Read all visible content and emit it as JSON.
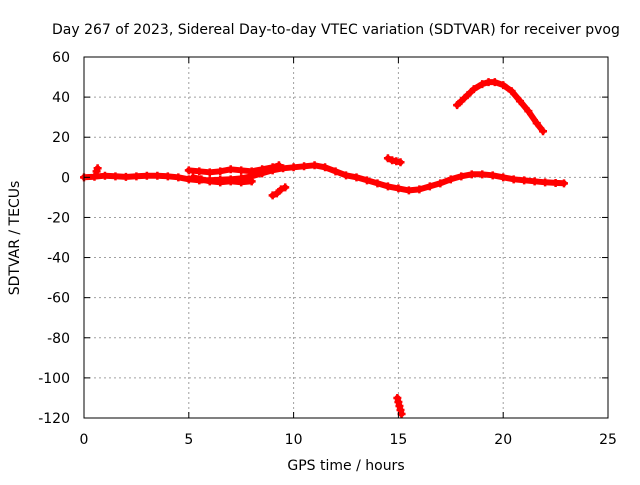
{
  "chart_data": {
    "type": "scatter",
    "title": "Day 267 of 2023, Sidereal Day-to-day VTEC variation (SDTVAR) for receiver pvog",
    "xlabel": "GPS time / hours",
    "ylabel": "SDTVAR / TECUs",
    "xlim": [
      0,
      25
    ],
    "ylim": [
      -120,
      60
    ],
    "xticks": [
      0,
      5,
      10,
      15,
      20,
      25
    ],
    "yticks": [
      -120,
      -100,
      -80,
      -60,
      -40,
      -20,
      0,
      20,
      40,
      60
    ],
    "grid": true,
    "legend": "none",
    "series_color": "#ff0000",
    "series": [
      {
        "name": "main-track",
        "points": [
          [
            0,
            0
          ],
          [
            0.5,
            0.3
          ],
          [
            1,
            0.8
          ],
          [
            1.5,
            0.5
          ],
          [
            2,
            0.2
          ],
          [
            2.5,
            0.5
          ],
          [
            3,
            0.8
          ],
          [
            3.5,
            0.8
          ],
          [
            4,
            0.5
          ],
          [
            4.5,
            0
          ],
          [
            5,
            -1
          ],
          [
            5.5,
            -1.5
          ],
          [
            6,
            -1.5
          ],
          [
            6.5,
            -1.2
          ],
          [
            7,
            -1
          ],
          [
            7.5,
            -0.5
          ],
          [
            8,
            0.5
          ],
          [
            8.5,
            2
          ],
          [
            9,
            3.5
          ],
          [
            9.5,
            4.5
          ],
          [
            10,
            5
          ],
          [
            10.5,
            5.5
          ],
          [
            11,
            6
          ],
          [
            11.5,
            5
          ],
          [
            12,
            3
          ],
          [
            12.5,
            1
          ],
          [
            13,
            0
          ],
          [
            13.5,
            -1.5
          ],
          [
            14,
            -3
          ],
          [
            14.5,
            -4.5
          ],
          [
            15,
            -5.5
          ],
          [
            15.5,
            -6.5
          ],
          [
            16,
            -6
          ],
          [
            16.5,
            -4.5
          ],
          [
            17,
            -3
          ],
          [
            17.5,
            -1
          ],
          [
            18,
            0.5
          ],
          [
            18.5,
            1.5
          ],
          [
            19,
            1.5
          ],
          [
            19.5,
            1
          ],
          [
            20,
            0
          ],
          [
            20.5,
            -1
          ],
          [
            21,
            -1.5
          ],
          [
            21.5,
            -2
          ],
          [
            22,
            -2.5
          ],
          [
            22.5,
            -2.8
          ],
          [
            22.9,
            -3
          ]
        ]
      },
      {
        "name": "upper-track",
        "points": [
          [
            5,
            3.5
          ],
          [
            5.5,
            3
          ],
          [
            6,
            2.5
          ],
          [
            6.5,
            3
          ],
          [
            7,
            4
          ],
          [
            7.5,
            3.5
          ],
          [
            8,
            3
          ],
          [
            8.5,
            4
          ],
          [
            9,
            5
          ],
          [
            9.3,
            6
          ]
        ]
      },
      {
        "name": "lower-track",
        "points": [
          [
            5.2,
            0
          ],
          [
            5.6,
            -1
          ],
          [
            6,
            -2
          ],
          [
            6.5,
            -2.5
          ],
          [
            7,
            -2
          ],
          [
            7.5,
            -2.5
          ],
          [
            8,
            -2
          ]
        ]
      },
      {
        "name": "short-dip",
        "points": [
          [
            9,
            -9
          ],
          [
            9.2,
            -8
          ],
          [
            9.4,
            -6
          ],
          [
            9.6,
            -5
          ]
        ]
      },
      {
        "name": "start-spike",
        "points": [
          [
            0.6,
            3
          ],
          [
            0.65,
            4.5
          ]
        ]
      },
      {
        "name": "arc-track",
        "points": [
          [
            17.8,
            36
          ],
          [
            18,
            38
          ],
          [
            18.3,
            41
          ],
          [
            18.6,
            44
          ],
          [
            19,
            46.5
          ],
          [
            19.3,
            47.5
          ],
          [
            19.6,
            47.5
          ],
          [
            20,
            46
          ],
          [
            20.4,
            43
          ],
          [
            20.8,
            38
          ],
          [
            21.2,
            33
          ],
          [
            21.6,
            27
          ],
          [
            21.9,
            23
          ]
        ]
      },
      {
        "name": "segment-near-15",
        "points": [
          [
            14.5,
            9.5
          ],
          [
            14.7,
            8.5
          ],
          [
            14.9,
            8
          ],
          [
            15.1,
            7.5
          ]
        ]
      },
      {
        "name": "drop-near-15",
        "points": [
          [
            14.95,
            -110
          ],
          [
            15,
            -112
          ],
          [
            15.05,
            -114
          ],
          [
            15.1,
            -116
          ],
          [
            15.15,
            -118
          ]
        ]
      }
    ]
  }
}
